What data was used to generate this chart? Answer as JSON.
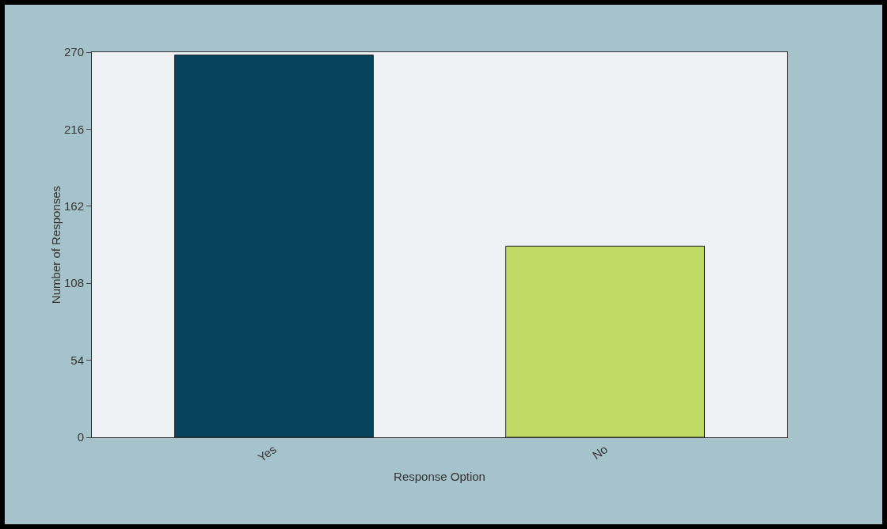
{
  "chart_data": {
    "type": "bar",
    "categories": [
      "Yes",
      "No"
    ],
    "values": [
      268,
      134
    ],
    "colors": [
      "#06445e",
      "#bfda66"
    ],
    "xlabel": "Response Option",
    "ylabel": "Number of Responses",
    "ylim": [
      0,
      270
    ],
    "yticks": [
      0,
      54,
      108,
      162,
      216,
      270
    ],
    "grid": false
  }
}
